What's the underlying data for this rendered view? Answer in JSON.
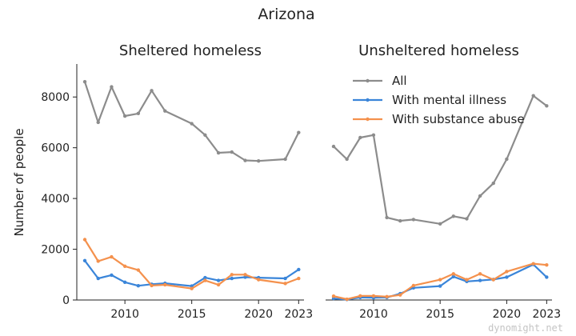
{
  "figure": {
    "title": "Arizona",
    "ylabel": "Number of people",
    "watermark": "dynomight.net"
  },
  "colors": {
    "all": "#8c8c8c",
    "mental": "#3a85d9",
    "substance": "#f4914d"
  },
  "legend": {
    "placement": "top-right of second panel",
    "entries": [
      "All",
      "With mental illness",
      "With substance abuse"
    ]
  },
  "chart_data": [
    {
      "type": "line",
      "title": "Sheltered homeless",
      "xlabel": "",
      "ylabel": "Number of people",
      "xlim": [
        2006.4,
        2023.4
      ],
      "ylim": [
        0,
        9300
      ],
      "xticks": [
        2010,
        2015,
        2020,
        2023
      ],
      "yticks": [
        0,
        2000,
        4000,
        6000,
        8000
      ],
      "grid": false,
      "x": [
        2007,
        2008,
        2009,
        2010,
        2011,
        2012,
        2013,
        2015,
        2016,
        2017,
        2018,
        2019,
        2020,
        2022,
        2023
      ],
      "series": [
        {
          "name": "All",
          "values": [
            8600,
            7000,
            8400,
            7250,
            7350,
            8250,
            7450,
            6950,
            6500,
            5800,
            5830,
            5500,
            5480,
            5550,
            6600
          ]
        },
        {
          "name": "With mental illness",
          "values": [
            1550,
            850,
            980,
            700,
            560,
            620,
            660,
            550,
            880,
            770,
            850,
            900,
            880,
            850,
            1200
          ]
        },
        {
          "name": "With substance abuse",
          "values": [
            2380,
            1530,
            1700,
            1330,
            1180,
            570,
            600,
            450,
            770,
            600,
            1000,
            1000,
            800,
            650,
            850
          ]
        }
      ]
    },
    {
      "type": "line",
      "title": "Unsheltered homeless",
      "xlabel": "",
      "ylabel": "",
      "xlim": [
        2006.4,
        2023.4
      ],
      "ylim": [
        0,
        9300
      ],
      "xticks": [
        2010,
        2015,
        2020,
        2023
      ],
      "yticks": [],
      "grid": false,
      "x": [
        2007,
        2008,
        2009,
        2010,
        2011,
        2012,
        2013,
        2015,
        2016,
        2017,
        2018,
        2019,
        2020,
        2022,
        2023
      ],
      "series": [
        {
          "name": "All",
          "values": [
            6050,
            5550,
            6400,
            6500,
            3250,
            3120,
            3170,
            3000,
            3300,
            3200,
            4100,
            4600,
            5550,
            8050,
            7650
          ]
        },
        {
          "name": "With mental illness",
          "values": [
            60,
            20,
            100,
            90,
            100,
            250,
            480,
            550,
            920,
            730,
            770,
            810,
            900,
            1400,
            900
          ]
        },
        {
          "name": "With substance abuse",
          "values": [
            150,
            30,
            160,
            160,
            130,
            200,
            570,
            800,
            1030,
            800,
            1030,
            800,
            1120,
            1430,
            1380
          ]
        }
      ]
    }
  ]
}
